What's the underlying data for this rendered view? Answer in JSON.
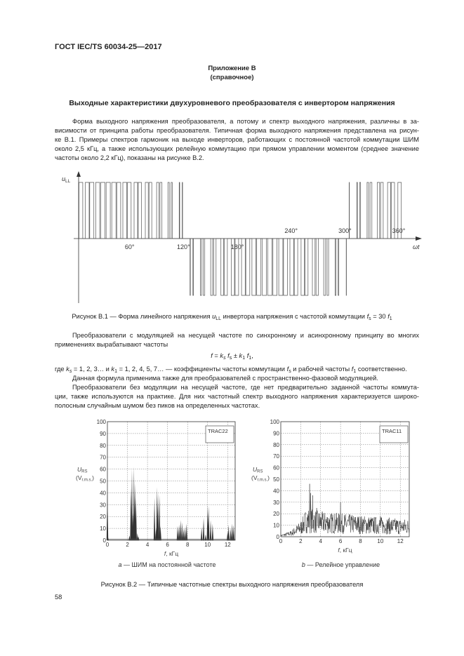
{
  "header": {
    "standard": "ГОСТ IEC/TS 60034-25—2017"
  },
  "annex": {
    "title": "Приложение В",
    "status": "(справочное)"
  },
  "section_title": "Выходные характеристики двухуровневого преобразователя с инвертором напряжения",
  "paragraph1": [
    "Форма выходного напряжения преобразователя, а потому и спектр выходного напряжения, различны в за-",
    "висимости от принципа работы преобразователя. Типичная форма выходного напряжения представлена на рисун-",
    "ке В.1. Примеры спектров гармоник на выходе инверторов, работающих с постоянной частотой коммутации ШИМ",
    "около 2,5 кГц, а также использующих релейную коммутацию при прямом управлении моментом (среднее значение",
    "частоты около 2,2 кГц), показаны на рисунке В.2."
  ],
  "figure1": {
    "y_label": [
      {
        "t": "u",
        "i": true
      },
      {
        "t": "LL",
        "sub": true
      }
    ],
    "x_label": "ωt",
    "ticks_below": [
      "60°",
      "120°",
      "180°"
    ],
    "ticks_above": [
      "240°",
      "300°",
      "360°"
    ],
    "switching_ratio": 30,
    "caption": [
      {
        "t": "Рисунок В.1 — Форма линейного напряжения "
      },
      {
        "t": "u",
        "i": true
      },
      {
        "t": "LL",
        "sub": true
      },
      {
        "t": " инвертора напряжения с частотой коммутации "
      },
      {
        "t": "f",
        "i": true
      },
      {
        "t": "s",
        "sub": true
      },
      {
        "t": " = 30 "
      },
      {
        "t": "f",
        "i": true
      },
      {
        "t": "1",
        "sub": true
      }
    ]
  },
  "paragraph2": [
    "Преобразователи с модуляцией на несущей частоте по синхронному и асинхронному принципу во многих",
    "применениях вырабатывают частоты"
  ],
  "formula": [
    {
      "t": "f",
      "i": true
    },
    {
      "t": " = "
    },
    {
      "t": "k",
      "i": true
    },
    {
      "t": "s",
      "sub": true,
      "i": true
    },
    {
      "t": " "
    },
    {
      "t": "f",
      "i": true
    },
    {
      "t": "s",
      "sub": true
    },
    {
      "t": " ± "
    },
    {
      "t": "k",
      "i": true
    },
    {
      "t": "1",
      "sub": true
    },
    {
      "t": " "
    },
    {
      "t": "f",
      "i": true
    },
    {
      "t": "1",
      "sub": true
    },
    {
      "t": ","
    }
  ],
  "where_line": [
    {
      "t": "где "
    },
    {
      "t": "k",
      "i": true
    },
    {
      "t": "s",
      "sub": true,
      "i": true
    },
    {
      "t": " = 1, 2, 3… и "
    },
    {
      "t": "k",
      "i": true
    },
    {
      "t": "1",
      "sub": true
    },
    {
      "t": " = 1, 2, 4, 5, 7… — коэффициенты частоты коммутации "
    },
    {
      "t": "f",
      "i": true
    },
    {
      "t": "s",
      "sub": true
    },
    {
      "t": " и рабочей частоты "
    },
    {
      "t": "f",
      "i": true
    },
    {
      "t": "1",
      "sub": true
    },
    {
      "t": " соответственно."
    }
  ],
  "paragraph3": [
    "Данная формула применима также для преобразователей с пространственно-фазовой модуляцией."
  ],
  "paragraph4": [
    "Преобразователи без модуляции на несущей частоте, где нет предварительно заданной частоты коммута-",
    "ции, также используются на практике. Для них частотный спектр выходного напряжения характеризуется широко-",
    "полосным случайным шумом без пиков на определенных частотах."
  ],
  "chart_data": [
    {
      "type": "bar",
      "legend": "TRAC22",
      "legend_placement": "top-right",
      "ylabel": "U_RS (V r.m.s.)",
      "ylabel_main": "U",
      "ylabel_sub": "RS",
      "ylabel_unit": "(V",
      "ylabel_unit_sub": "r.m.s.",
      "ylabel_unit_end": ")",
      "xlabel_var": "f",
      "xlabel_unit": ", кГц",
      "xlim": [
        0,
        12.75
      ],
      "ylim": [
        0,
        100
      ],
      "xticks": [
        0,
        2,
        4,
        6,
        8,
        10,
        12
      ],
      "yticks": [
        0,
        10,
        20,
        30,
        40,
        50,
        60,
        70,
        80,
        90,
        100
      ],
      "grid": true,
      "subcaption_letter": "a",
      "subcaption": " — ШИМ на постоянной частоте",
      "peaks": [
        [
          0,
          42
        ],
        [
          0.05,
          3
        ],
        [
          2.2,
          4
        ],
        [
          2.35,
          44
        ],
        [
          2.45,
          60
        ],
        [
          2.55,
          23
        ],
        [
          2.65,
          62
        ],
        [
          2.75,
          48
        ],
        [
          2.85,
          36
        ],
        [
          3.0,
          6
        ],
        [
          3.1,
          3
        ],
        [
          4.7,
          36
        ],
        [
          4.85,
          10
        ],
        [
          4.95,
          45
        ],
        [
          5.05,
          40
        ],
        [
          5.2,
          38
        ],
        [
          5.3,
          12
        ],
        [
          7.0,
          12
        ],
        [
          7.15,
          13
        ],
        [
          7.3,
          17
        ],
        [
          7.45,
          15
        ],
        [
          7.6,
          10
        ],
        [
          7.75,
          11
        ],
        [
          7.9,
          14
        ],
        [
          9.4,
          11
        ],
        [
          9.6,
          19
        ],
        [
          9.8,
          5
        ],
        [
          10.0,
          30
        ],
        [
          10.1,
          29
        ],
        [
          10.3,
          17
        ],
        [
          10.5,
          14
        ],
        [
          12.0,
          8
        ],
        [
          12.1,
          13
        ],
        [
          12.3,
          10
        ],
        [
          12.45,
          14
        ],
        [
          12.6,
          13
        ]
      ]
    },
    {
      "type": "line",
      "legend": "TRAC11",
      "legend_placement": "top-right",
      "ylabel": "U_RS (V r.m.s.)",
      "ylabel_main": "U",
      "ylabel_sub": "RS",
      "ylabel_unit": "(V",
      "ylabel_unit_sub": "r.m.s.",
      "ylabel_unit_end": ")",
      "xlabel_var": "f",
      "xlabel_unit": ", кГц",
      "xlim": [
        0,
        12.9
      ],
      "ylim": [
        0,
        100
      ],
      "xticks": [
        0,
        2,
        4,
        6,
        8,
        10,
        12
      ],
      "yticks": [
        0,
        10,
        20,
        30,
        40,
        50,
        60,
        70,
        80,
        90,
        100
      ],
      "grid": true,
      "subcaption_letter": "b",
      "subcaption": " — Релейное управление",
      "peaks": [
        [
          2.9,
          46
        ],
        [
          3.0,
          38
        ],
        [
          3.2,
          36
        ],
        [
          3.6,
          25
        ],
        [
          6.0,
          30
        ],
        [
          10.0,
          18
        ]
      ],
      "noise_envelope": [
        [
          0,
          1
        ],
        [
          1,
          3
        ],
        [
          2,
          8
        ],
        [
          2.6,
          15
        ],
        [
          4,
          13
        ],
        [
          8,
          11
        ],
        [
          12.9,
          9
        ]
      ]
    }
  ],
  "figure2_caption": "Рисунок В.2 — Типичные частотные спектры выходного напряжения преобразователя",
  "page_number": "58"
}
